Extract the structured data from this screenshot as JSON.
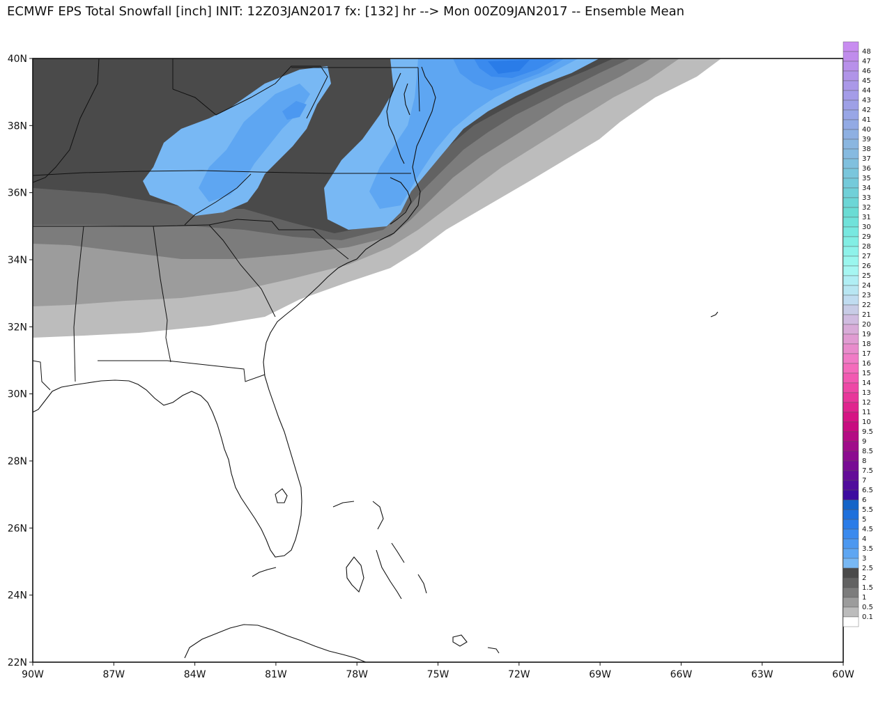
{
  "title": "ECMWF EPS Total Snowfall [inch] INIT: 12Z03JAN2017 fx: [132] hr --> Mon 00Z09JAN2017 -- Ensemble Mean",
  "map": {
    "lon_range": [
      -90,
      -60
    ],
    "lat_range": [
      22,
      40
    ],
    "lat_labels": [
      "40N",
      "38N",
      "36N",
      "34N",
      "32N",
      "30N",
      "28N",
      "26N",
      "24N",
      "22N"
    ],
    "lon_labels": [
      "90W",
      "87W",
      "84W",
      "81W",
      "78W",
      "75W",
      "72W",
      "69W",
      "66W",
      "63W",
      "60W"
    ]
  },
  "legend": {
    "labels": [
      "48",
      "47",
      "46",
      "45",
      "44",
      "43",
      "42",
      "41",
      "40",
      "39",
      "38",
      "37",
      "36",
      "35",
      "34",
      "33",
      "32",
      "31",
      "30",
      "29",
      "28",
      "27",
      "26",
      "25",
      "24",
      "23",
      "22",
      "21",
      "20",
      "19",
      "18",
      "17",
      "16",
      "15",
      "14",
      "13",
      "12",
      "11",
      "10",
      "9.5",
      "9",
      "8.5",
      "8",
      "7.5",
      "7",
      "6.5",
      "6",
      "5.5",
      "5",
      "4.5",
      "4",
      "3.5",
      "3",
      "2.5",
      "2",
      "1.5",
      "1",
      "0.5",
      "0.1"
    ],
    "colors": [
      "#c88cf0",
      "#c08cec",
      "#b890ea",
      "#b094e8",
      "#aa98e8",
      "#a49ce8",
      "#9ea0e6",
      "#98a6e6",
      "#92aae4",
      "#8eb0e2",
      "#8ab6e0",
      "#86bae0",
      "#80c0de",
      "#7ac6dc",
      "#74cada",
      "#70d0d8",
      "#6cd6d6",
      "#6adcd4",
      "#70e2da",
      "#78e8e0",
      "#82eee4",
      "#8ef2ea",
      "#9af6ee",
      "#a6f6f2",
      "#b0eef4",
      "#b8e6f2",
      "#c0dcf0",
      "#c8cce6",
      "#d0bce0",
      "#d8acd8",
      "#e09cd2",
      "#e88ccc",
      "#f07cc6",
      "#f46cbc",
      "#f25ab2",
      "#ee48a6",
      "#e8369a",
      "#e0248e",
      "#d61484",
      "#c80c80",
      "#b40c84",
      "#a00c8a",
      "#8c0c90",
      "#780c94",
      "#640c98",
      "#500c9c",
      "#3c0ca0",
      "#1464c8",
      "#1e70dc",
      "#2a7ce8",
      "#3a8aee",
      "#4c98f0",
      "#5ea6f2",
      "#78b8f4",
      "#4a4a4a",
      "#626262",
      "#7c7c7c",
      "#9c9c9c",
      "#bcbcbc"
    ]
  }
}
